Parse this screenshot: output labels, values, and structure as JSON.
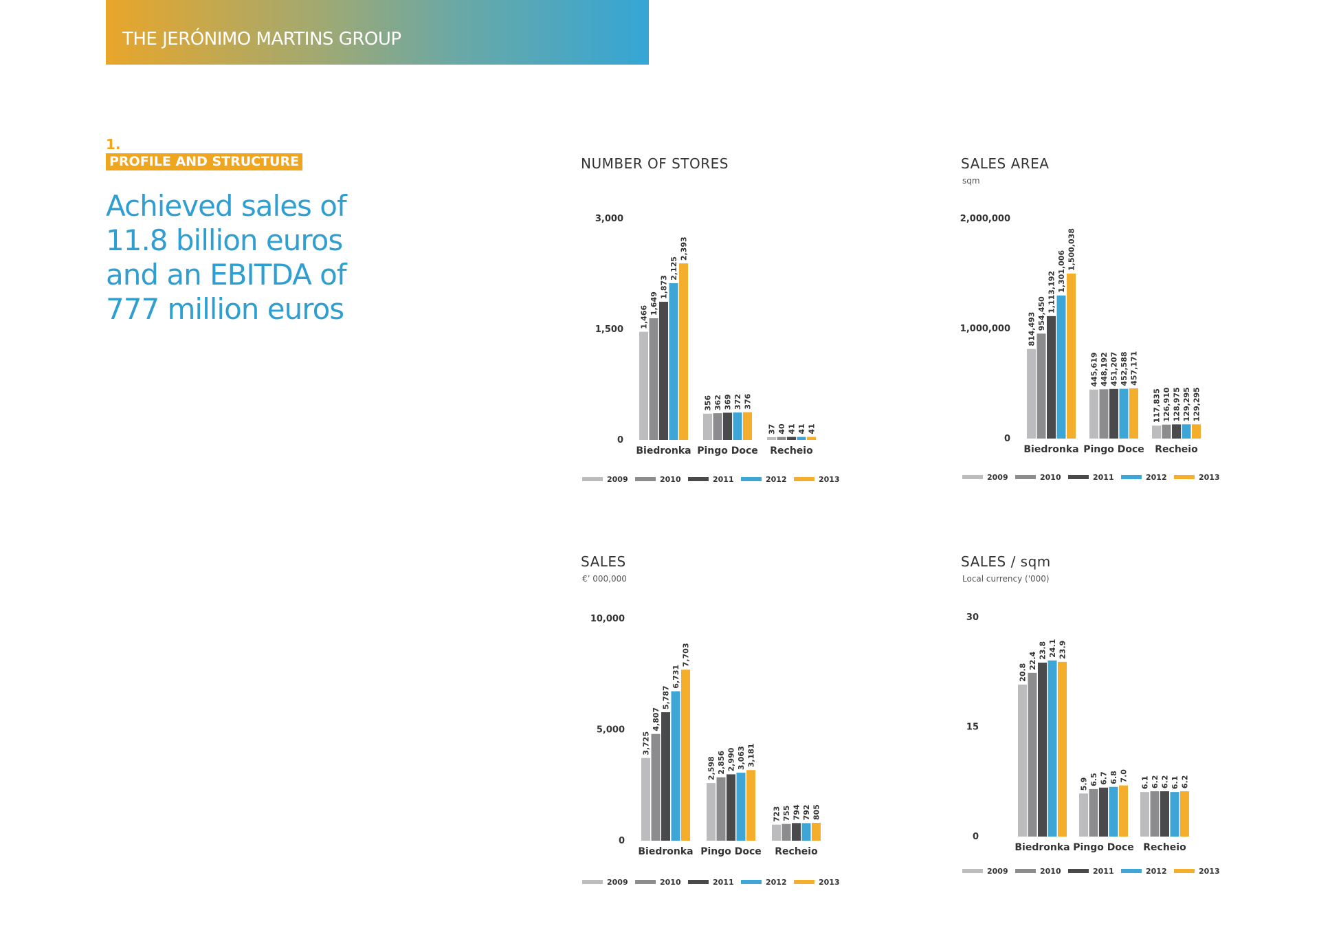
{
  "header": {
    "title": "THE JERÓNIMO MARTINS GROUP"
  },
  "section": {
    "number": "1.",
    "label": "PROFILE AND STRUCTURE"
  },
  "headline": {
    "lines": [
      "Achieved sales of",
      "11.8 billion euros",
      "and an EBITDA of",
      "777 million euros"
    ]
  },
  "colors": {
    "2009": "#bcbcbe",
    "2010": "#8c8c8e",
    "2011": "#4a4a4c",
    "2012": "#3ea6d6",
    "2013": "#f5ae2c"
  },
  "chart_data": [
    {
      "id": "stores",
      "type": "bar",
      "title": "NUMBER OF STORES",
      "subtitle": "",
      "categories": [
        "Biedronka",
        "Pingo Doce",
        "Recheio"
      ],
      "ylim": [
        0,
        3000
      ],
      "yticks": [
        "0",
        "1,500",
        "3,000"
      ],
      "series": [
        {
          "name": "2009",
          "values": [
            1466,
            356,
            37
          ],
          "labels": [
            "1,466",
            "356",
            "37"
          ]
        },
        {
          "name": "2010",
          "values": [
            1649,
            362,
            40
          ],
          "labels": [
            "1,649",
            "362",
            "40"
          ]
        },
        {
          "name": "2011",
          "values": [
            1873,
            369,
            41
          ],
          "labels": [
            "1,873",
            "369",
            "41"
          ]
        },
        {
          "name": "2012",
          "values": [
            2125,
            372,
            41
          ],
          "labels": [
            "2,125",
            "372",
            "41"
          ]
        },
        {
          "name": "2013",
          "values": [
            2393,
            376,
            41
          ],
          "labels": [
            "2,393",
            "376",
            "41"
          ]
        }
      ]
    },
    {
      "id": "area",
      "type": "bar",
      "title": "SALES AREA",
      "subtitle": "sqm",
      "categories": [
        "Biedronka",
        "Pingo Doce",
        "Recheio"
      ],
      "ylim": [
        0,
        2000000
      ],
      "yticks": [
        "0",
        "1,000,000",
        "2,000,000"
      ],
      "series": [
        {
          "name": "2009",
          "values": [
            814493,
            445619,
            117835
          ],
          "labels": [
            "814,493",
            "445,619",
            "117,835"
          ]
        },
        {
          "name": "2010",
          "values": [
            954450,
            448192,
            126910
          ],
          "labels": [
            "954,450",
            "448,192",
            "126,910"
          ]
        },
        {
          "name": "2011",
          "values": [
            1113192,
            451207,
            128975
          ],
          "labels": [
            "1,113,192",
            "451,207",
            "128,975"
          ]
        },
        {
          "name": "2012",
          "values": [
            1301006,
            452588,
            129295
          ],
          "labels": [
            "1,301,006",
            "452,588",
            "129,295"
          ]
        },
        {
          "name": "2013",
          "values": [
            1500038,
            457171,
            129295
          ],
          "labels": [
            "1,500,038",
            "457,171",
            "129,295"
          ]
        }
      ]
    },
    {
      "id": "sales",
      "type": "bar",
      "title": "SALES",
      "subtitle": "€’ 000,000",
      "categories": [
        "Biedronka",
        "Pingo Doce",
        "Recheio"
      ],
      "ylim": [
        0,
        10000
      ],
      "yticks": [
        "0",
        "5,000",
        "10,000"
      ],
      "series": [
        {
          "name": "2009",
          "values": [
            3725,
            2598,
            723
          ],
          "labels": [
            "3,725",
            "2,598",
            "723"
          ]
        },
        {
          "name": "2010",
          "values": [
            4807,
            2856,
            755
          ],
          "labels": [
            "4,807",
            "2,856",
            "755"
          ]
        },
        {
          "name": "2011",
          "values": [
            5787,
            2990,
            794
          ],
          "labels": [
            "5,787",
            "2,990",
            "794"
          ]
        },
        {
          "name": "2012",
          "values": [
            6731,
            3063,
            792
          ],
          "labels": [
            "6,731",
            "3,063",
            "792"
          ]
        },
        {
          "name": "2013",
          "values": [
            7703,
            3181,
            805
          ],
          "labels": [
            "7,703",
            "3,181",
            "805"
          ]
        }
      ]
    },
    {
      "id": "salessqm",
      "type": "bar",
      "title": "SALES / sqm",
      "subtitle": "Local currency ('000)",
      "categories": [
        "Biedronka",
        "Pingo Doce",
        "Recheio"
      ],
      "ylim": [
        0,
        30
      ],
      "yticks": [
        "0",
        "15",
        "30"
      ],
      "series": [
        {
          "name": "2009",
          "values": [
            20.8,
            5.9,
            6.1
          ],
          "labels": [
            "20.8",
            "5.9",
            "6.1"
          ]
        },
        {
          "name": "2010",
          "values": [
            22.4,
            6.5,
            6.2
          ],
          "labels": [
            "22.4",
            "6.5",
            "6.2"
          ]
        },
        {
          "name": "2011",
          "values": [
            23.8,
            6.7,
            6.2
          ],
          "labels": [
            "23.8",
            "6.7",
            "6.2"
          ]
        },
        {
          "name": "2012",
          "values": [
            24.1,
            6.8,
            6.1
          ],
          "labels": [
            "24.1",
            "6.8",
            "6.1"
          ]
        },
        {
          "name": "2013",
          "values": [
            23.9,
            7.0,
            6.2
          ],
          "labels": [
            "23.9",
            "7.0",
            "6.2"
          ]
        }
      ]
    }
  ]
}
